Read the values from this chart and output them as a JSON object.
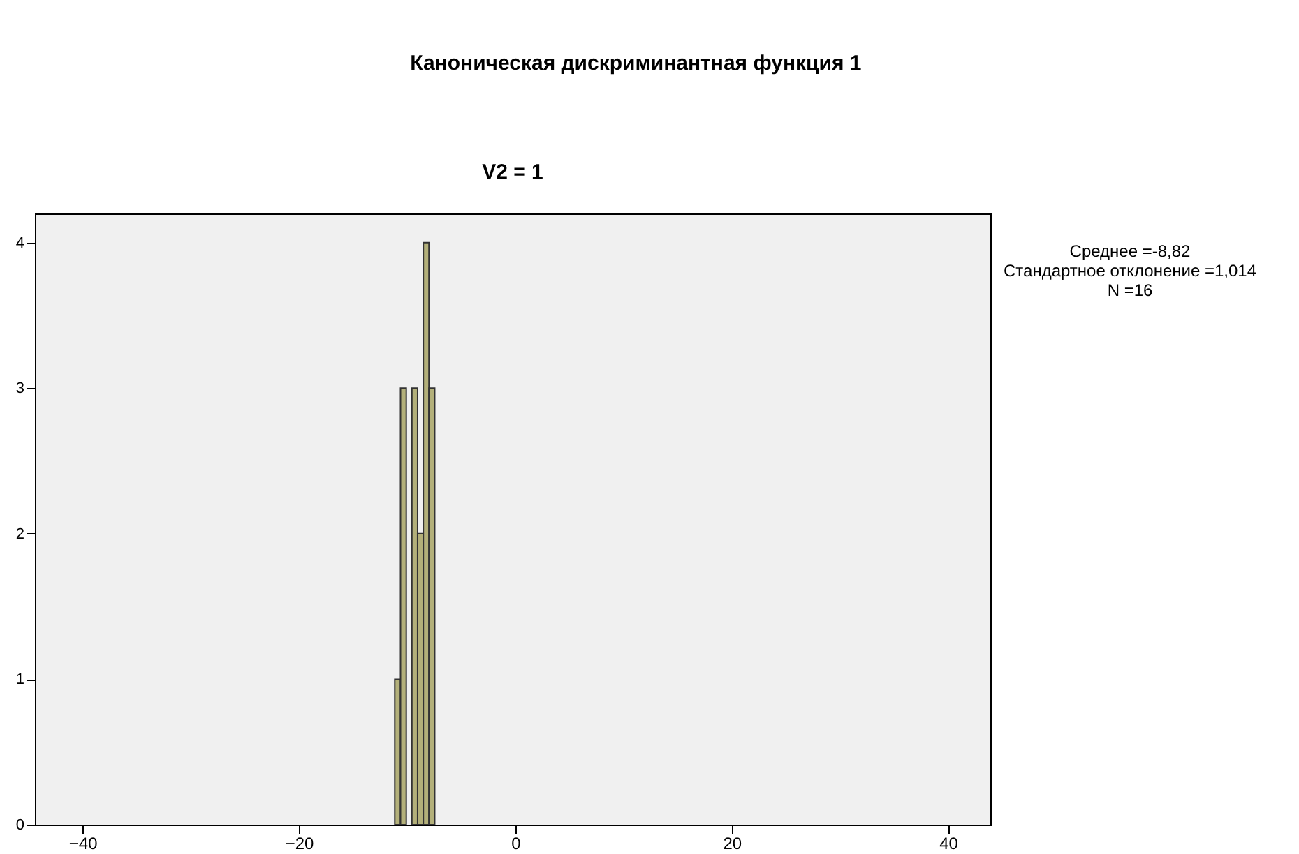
{
  "chart_data": {
    "type": "histogram",
    "title": "Каноническая дискриминантная функция 1",
    "subtitle": "V2 = 1",
    "bins": [
      -11.14,
      -10.61,
      -10.08,
      -9.56,
      -9.03,
      -8.5,
      -7.98,
      -7.45
    ],
    "values": [
      1,
      3,
      0,
      3,
      2,
      4,
      3
    ],
    "color": "#b3b07a",
    "xlim": [
      -44.4,
      43.9
    ],
    "xticks": [
      -40,
      -20,
      0,
      20,
      40
    ],
    "ylim": [
      0,
      4.2
    ],
    "yticks": [
      0,
      1,
      2,
      3,
      4
    ],
    "grid": false,
    "annotations": [
      "Среднее =-8,82",
      "Стандартное отклонение =1,014",
      "N =16"
    ]
  }
}
